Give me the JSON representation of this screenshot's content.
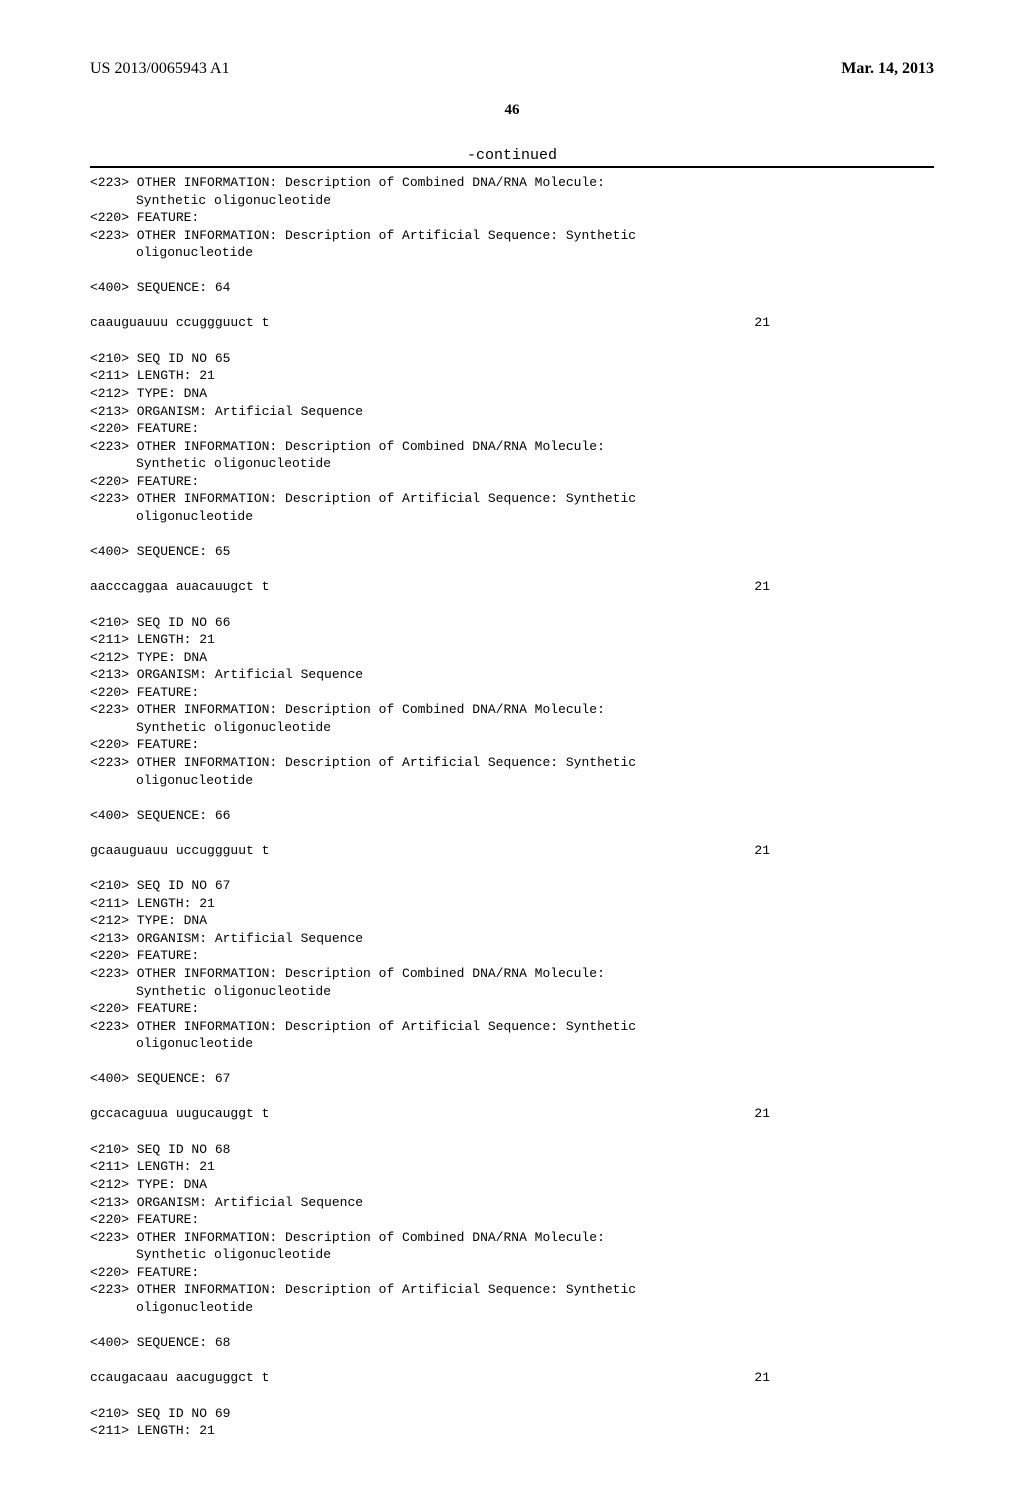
{
  "header": {
    "publication_number": "US 2013/0065943 A1",
    "publication_date": "Mar. 14, 2013"
  },
  "page_number": "46",
  "continued_label": "-continued",
  "entries": [
    {
      "pre_lines": [
        {
          "tag": "<223>",
          "text": "OTHER INFORMATION: Description of Combined DNA/RNA Molecule:"
        },
        {
          "tag": "",
          "text": "Synthetic oligonucleotide",
          "indent": true
        },
        {
          "tag": "<220>",
          "text": "FEATURE:"
        },
        {
          "tag": "<223>",
          "text": "OTHER INFORMATION: Description of Artificial Sequence: Synthetic"
        },
        {
          "tag": "",
          "text": "oligonucleotide",
          "indent": true
        }
      ],
      "seq_header": "<400> SEQUENCE: 64",
      "sequence": "caauguauuu ccuggguuct t",
      "length": "21"
    },
    {
      "pre_lines": [
        {
          "tag": "<210>",
          "text": "SEQ ID NO 65"
        },
        {
          "tag": "<211>",
          "text": "LENGTH: 21"
        },
        {
          "tag": "<212>",
          "text": "TYPE: DNA"
        },
        {
          "tag": "<213>",
          "text": "ORGANISM: Artificial Sequence"
        },
        {
          "tag": "<220>",
          "text": "FEATURE:"
        },
        {
          "tag": "<223>",
          "text": "OTHER INFORMATION: Description of Combined DNA/RNA Molecule:"
        },
        {
          "tag": "",
          "text": "Synthetic oligonucleotide",
          "indent": true
        },
        {
          "tag": "<220>",
          "text": "FEATURE:"
        },
        {
          "tag": "<223>",
          "text": "OTHER INFORMATION: Description of Artificial Sequence: Synthetic"
        },
        {
          "tag": "",
          "text": "oligonucleotide",
          "indent": true
        }
      ],
      "seq_header": "<400> SEQUENCE: 65",
      "sequence": "aacccaggaa auacauugct t",
      "length": "21"
    },
    {
      "pre_lines": [
        {
          "tag": "<210>",
          "text": "SEQ ID NO 66"
        },
        {
          "tag": "<211>",
          "text": "LENGTH: 21"
        },
        {
          "tag": "<212>",
          "text": "TYPE: DNA"
        },
        {
          "tag": "<213>",
          "text": "ORGANISM: Artificial Sequence"
        },
        {
          "tag": "<220>",
          "text": "FEATURE:"
        },
        {
          "tag": "<223>",
          "text": "OTHER INFORMATION: Description of Combined DNA/RNA Molecule:"
        },
        {
          "tag": "",
          "text": "Synthetic oligonucleotide",
          "indent": true
        },
        {
          "tag": "<220>",
          "text": "FEATURE:"
        },
        {
          "tag": "<223>",
          "text": "OTHER INFORMATION: Description of Artificial Sequence: Synthetic"
        },
        {
          "tag": "",
          "text": "oligonucleotide",
          "indent": true
        }
      ],
      "seq_header": "<400> SEQUENCE: 66",
      "sequence": "gcaauguauu uccuggguut t",
      "length": "21"
    },
    {
      "pre_lines": [
        {
          "tag": "<210>",
          "text": "SEQ ID NO 67"
        },
        {
          "tag": "<211>",
          "text": "LENGTH: 21"
        },
        {
          "tag": "<212>",
          "text": "TYPE: DNA"
        },
        {
          "tag": "<213>",
          "text": "ORGANISM: Artificial Sequence"
        },
        {
          "tag": "<220>",
          "text": "FEATURE:"
        },
        {
          "tag": "<223>",
          "text": "OTHER INFORMATION: Description of Combined DNA/RNA Molecule:"
        },
        {
          "tag": "",
          "text": "Synthetic oligonucleotide",
          "indent": true
        },
        {
          "tag": "<220>",
          "text": "FEATURE:"
        },
        {
          "tag": "<223>",
          "text": "OTHER INFORMATION: Description of Artificial Sequence: Synthetic"
        },
        {
          "tag": "",
          "text": "oligonucleotide",
          "indent": true
        }
      ],
      "seq_header": "<400> SEQUENCE: 67",
      "sequence": "gccacaguua uugucauggt t",
      "length": "21"
    },
    {
      "pre_lines": [
        {
          "tag": "<210>",
          "text": "SEQ ID NO 68"
        },
        {
          "tag": "<211>",
          "text": "LENGTH: 21"
        },
        {
          "tag": "<212>",
          "text": "TYPE: DNA"
        },
        {
          "tag": "<213>",
          "text": "ORGANISM: Artificial Sequence"
        },
        {
          "tag": "<220>",
          "text": "FEATURE:"
        },
        {
          "tag": "<223>",
          "text": "OTHER INFORMATION: Description of Combined DNA/RNA Molecule:"
        },
        {
          "tag": "",
          "text": "Synthetic oligonucleotide",
          "indent": true
        },
        {
          "tag": "<220>",
          "text": "FEATURE:"
        },
        {
          "tag": "<223>",
          "text": "OTHER INFORMATION: Description of Artificial Sequence: Synthetic"
        },
        {
          "tag": "",
          "text": "oligonucleotide",
          "indent": true
        }
      ],
      "seq_header": "<400> SEQUENCE: 68",
      "sequence": "ccaugacaau aacuguggct t",
      "length": "21"
    },
    {
      "pre_lines": [
        {
          "tag": "<210>",
          "text": "SEQ ID NO 69"
        },
        {
          "tag": "<211>",
          "text": "LENGTH: 21"
        }
      ],
      "seq_header": "",
      "sequence": "",
      "length": ""
    }
  ]
}
